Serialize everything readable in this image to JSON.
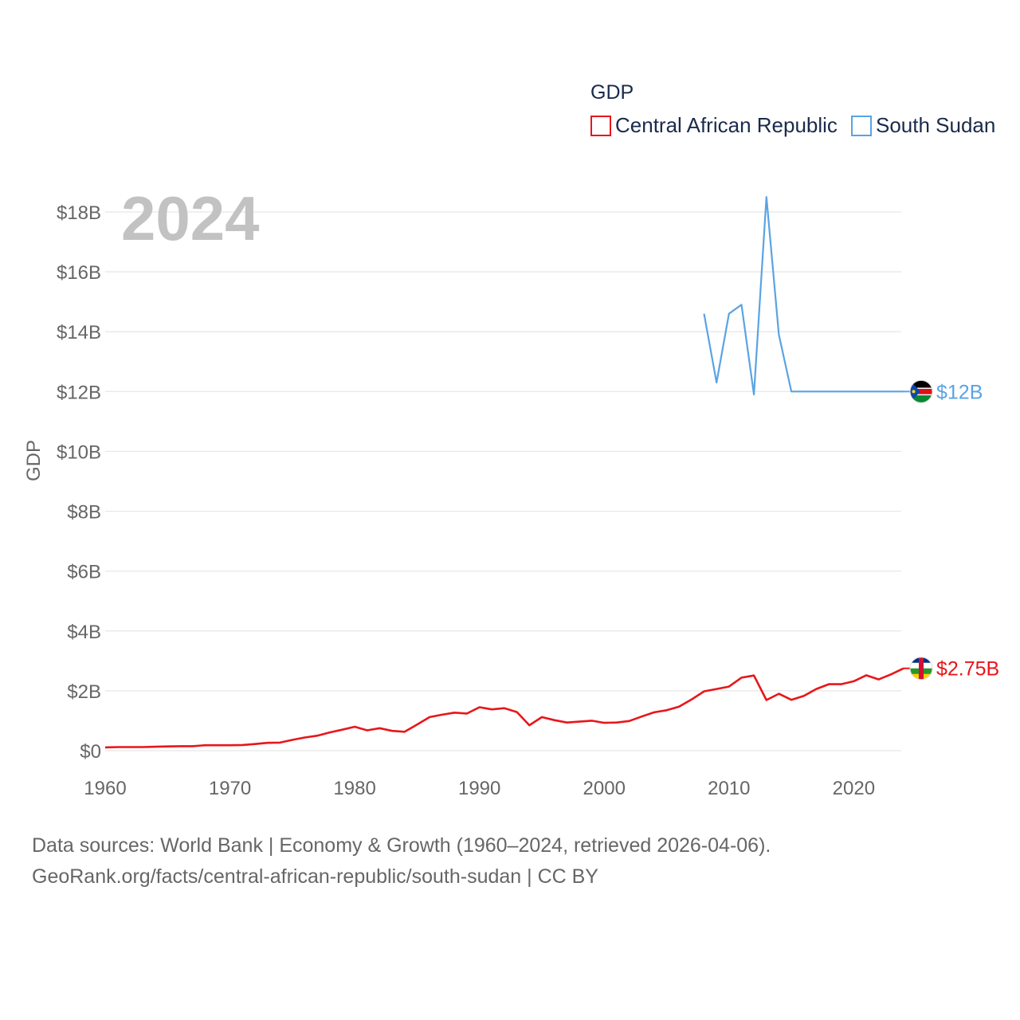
{
  "chart_data": {
    "type": "line",
    "legend_title": "GDP",
    "ylabel": "GDP",
    "year_label": "2024",
    "x_ticks": [
      1960,
      1970,
      1980,
      1990,
      2000,
      2010,
      2020
    ],
    "y_ticks": [
      "$0",
      "$2B",
      "$4B",
      "$6B",
      "$8B",
      "$10B",
      "$12B",
      "$14B",
      "$16B",
      "$18B"
    ],
    "y_tick_values": [
      0,
      2,
      4,
      6,
      8,
      10,
      12,
      14,
      16,
      18
    ],
    "xlim": [
      1960,
      2024
    ],
    "ylim": [
      0,
      18.5
    ],
    "y_unit": "billion USD",
    "series": [
      {
        "name": "Central African Republic",
        "color": "#e8161a",
        "end_label": "$2.75B",
        "flag_colors": [
          "#003082",
          "#ffffff",
          "#289728",
          "#ffce00",
          "#d21034"
        ],
        "x": [
          1960,
          1961,
          1962,
          1963,
          1964,
          1965,
          1966,
          1967,
          1968,
          1969,
          1970,
          1971,
          1972,
          1973,
          1974,
          1975,
          1976,
          1977,
          1978,
          1979,
          1980,
          1981,
          1982,
          1983,
          1984,
          1985,
          1986,
          1987,
          1988,
          1989,
          1990,
          1991,
          1992,
          1993,
          1994,
          1995,
          1996,
          1997,
          1998,
          1999,
          2000,
          2001,
          2002,
          2003,
          2004,
          2005,
          2006,
          2007,
          2008,
          2009,
          2010,
          2011,
          2012,
          2013,
          2014,
          2015,
          2016,
          2017,
          2018,
          2019,
          2020,
          2021,
          2022,
          2023,
          2024
        ],
        "values": [
          0.11,
          0.12,
          0.12,
          0.12,
          0.13,
          0.14,
          0.15,
          0.15,
          0.18,
          0.18,
          0.18,
          0.19,
          0.22,
          0.26,
          0.27,
          0.36,
          0.44,
          0.5,
          0.61,
          0.7,
          0.8,
          0.68,
          0.75,
          0.66,
          0.63,
          0.87,
          1.12,
          1.2,
          1.27,
          1.24,
          1.45,
          1.38,
          1.42,
          1.29,
          0.85,
          1.12,
          1.02,
          0.94,
          0.97,
          1.0,
          0.93,
          0.94,
          0.99,
          1.14,
          1.28,
          1.35,
          1.47,
          1.71,
          1.98,
          2.06,
          2.14,
          2.44,
          2.51,
          1.69,
          1.9,
          1.7,
          1.83,
          2.06,
          2.22,
          2.22,
          2.32,
          2.52,
          2.38,
          2.55,
          2.75
        ]
      },
      {
        "name": "South Sudan",
        "color": "#5aa3e3",
        "end_label": "$12B",
        "flag_colors": [
          "#000000",
          "#ffffff",
          "#da121a",
          "#078930",
          "#0f47af",
          "#fcdd09"
        ],
        "x": [
          2008,
          2009,
          2010,
          2011,
          2012,
          2013,
          2014,
          2015,
          2016,
          2017,
          2018,
          2019,
          2020,
          2021,
          2022,
          2023,
          2024
        ],
        "values": [
          14.6,
          12.3,
          14.6,
          14.9,
          11.9,
          18.5,
          13.9,
          12.0,
          12.0,
          12.0,
          12.0,
          12.0,
          12.0,
          12.0,
          12.0,
          12.0,
          12.0
        ]
      }
    ]
  },
  "footer": {
    "line1": "Data sources: World Bank | Economy & Growth (1960–2024, retrieved 2026-04-06).",
    "line2": "GeoRank.org/facts/central-african-republic/south-sudan | CC BY"
  }
}
